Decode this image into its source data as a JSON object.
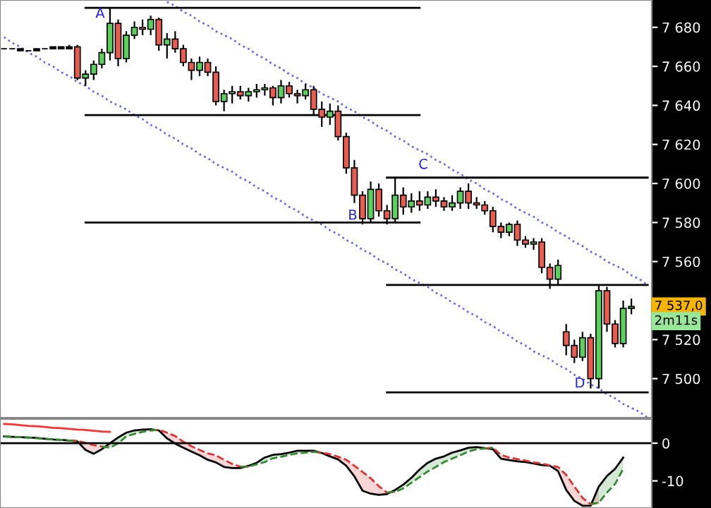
{
  "chart_data": [
    {
      "type": "candlestick",
      "tick_labels": "y",
      "grid": false,
      "legend": false,
      "categories": [
        null,
        null,
        null,
        null,
        null,
        null,
        null,
        null,
        null,
        null,
        null,
        null,
        null,
        null,
        null,
        null,
        null,
        null,
        null,
        null,
        null,
        null,
        null,
        null,
        null,
        null,
        null,
        null,
        null,
        null,
        null,
        null,
        null,
        null,
        null,
        null,
        null,
        null,
        null,
        null,
        null,
        null,
        null,
        null,
        null,
        null,
        null,
        null,
        null,
        null,
        null,
        null,
        null,
        null,
        null,
        null,
        null,
        null,
        null,
        null,
        null,
        null,
        null,
        null,
        null,
        null,
        null,
        null,
        null,
        null,
        null,
        null,
        null,
        null,
        null,
        null,
        null,
        null,
        null,
        null
      ],
      "ohlc": [
        [
          7669,
          7669,
          7669,
          7669
        ],
        [
          7669,
          7669,
          7669,
          7669
        ],
        [
          7669,
          7669,
          7668,
          7668
        ],
        [
          7668,
          7668,
          7668,
          7668
        ],
        [
          7668,
          7669,
          7668,
          7669
        ],
        [
          7669,
          7669,
          7669,
          7669
        ],
        [
          7669,
          7670,
          7669,
          7670
        ],
        [
          7670,
          7670,
          7669,
          7669
        ],
        [
          7669,
          7671,
          7669,
          7670
        ],
        [
          7670,
          7671,
          7653,
          7654
        ],
        [
          7654,
          7658,
          7650,
          7656
        ],
        [
          7656,
          7663,
          7653,
          7661
        ],
        [
          7661,
          7669,
          7659,
          7667
        ],
        [
          7667,
          7690,
          7663,
          7682
        ],
        [
          7682,
          7684,
          7660,
          7664
        ],
        [
          7664,
          7678,
          7662,
          7676
        ],
        [
          7676,
          7683,
          7674,
          7680
        ],
        [
          7680,
          7684,
          7676,
          7679
        ],
        [
          7679,
          7686,
          7676,
          7684
        ],
        [
          7684,
          7685,
          7668,
          7671
        ],
        [
          7671,
          7677,
          7664,
          7674
        ],
        [
          7674,
          7678,
          7667,
          7669
        ],
        [
          7669,
          7671,
          7660,
          7662
        ],
        [
          7662,
          7664,
          7653,
          7658
        ],
        [
          7658,
          7665,
          7655,
          7662
        ],
        [
          7662,
          7664,
          7655,
          7657
        ],
        [
          7657,
          7660,
          7640,
          7642
        ],
        [
          7642,
          7648,
          7637,
          7646
        ],
        [
          7646,
          7650,
          7641,
          7647
        ],
        [
          7647,
          7650,
          7643,
          7645
        ],
        [
          7645,
          7649,
          7642,
          7647
        ],
        [
          7647,
          7651,
          7644,
          7648
        ],
        [
          7648,
          7651,
          7645,
          7649
        ],
        [
          7649,
          7650,
          7640,
          7644
        ],
        [
          7644,
          7653,
          7641,
          7650
        ],
        [
          7650,
          7652,
          7644,
          7646
        ],
        [
          7646,
          7648,
          7641,
          7645
        ],
        [
          7645,
          7651,
          7643,
          7648
        ],
        [
          7648,
          7650,
          7635,
          7638
        ],
        [
          7638,
          7642,
          7629,
          7634
        ],
        [
          7634,
          7641,
          7630,
          7637
        ],
        [
          7637,
          7640,
          7622,
          7624
        ],
        [
          7624,
          7626,
          7605,
          7608
        ],
        [
          7608,
          7612,
          7590,
          7594
        ],
        [
          7594,
          7596,
          7579,
          7582
        ],
        [
          7582,
          7601,
          7580,
          7597
        ],
        [
          7597,
          7600,
          7583,
          7586
        ],
        [
          7586,
          7589,
          7579,
          7582
        ],
        [
          7582,
          7603,
          7580,
          7594
        ],
        [
          7594,
          7598,
          7584,
          7588
        ],
        [
          7588,
          7595,
          7585,
          7591
        ],
        [
          7591,
          7596,
          7586,
          7589
        ],
        [
          7589,
          7596,
          7587,
          7593
        ],
        [
          7593,
          7597,
          7588,
          7591
        ],
        [
          7591,
          7593,
          7586,
          7588
        ],
        [
          7588,
          7594,
          7586,
          7590
        ],
        [
          7590,
          7598,
          7587,
          7596
        ],
        [
          7596,
          7600,
          7587,
          7590
        ],
        [
          7590,
          7593,
          7587,
          7589
        ],
        [
          7589,
          7591,
          7584,
          7586
        ],
        [
          7586,
          7588,
          7575,
          7578
        ],
        [
          7578,
          7580,
          7572,
          7575
        ],
        [
          7575,
          7580,
          7573,
          7579
        ],
        [
          7579,
          7581,
          7568,
          7571
        ],
        [
          7571,
          7573,
          7567,
          7569
        ],
        [
          7569,
          7572,
          7566,
          7570
        ],
        [
          7570,
          7572,
          7554,
          7557
        ],
        [
          7557,
          7559,
          7546,
          7551
        ],
        [
          7551,
          7561,
          7548,
          7558
        ],
        [
          7524,
          7528,
          7512,
          7517
        ],
        [
          7517,
          7520,
          7508,
          7511
        ],
        [
          7511,
          7524,
          7509,
          7521
        ],
        [
          7521,
          7523,
          7495,
          7500
        ],
        [
          7500,
          7548,
          7495,
          7545
        ],
        [
          7545,
          7547,
          7524,
          7528
        ],
        [
          7528,
          7530,
          7516,
          7518
        ],
        [
          7518,
          7540,
          7516,
          7536
        ],
        [
          7536,
          7541,
          7533,
          7537
        ],
        null,
        null
      ],
      "colors": [
        "#000000",
        "#000000",
        "#000000",
        "#000000",
        "#000000",
        "#000000",
        "#000000",
        "#000000",
        "#000000",
        "#e85d50",
        "#5ad15a",
        "#5ad15a",
        "#5ad15a",
        "#5ad15a",
        "#e85d50",
        "#5ad15a",
        "#5ad15a",
        "#e85d50",
        "#5ad15a",
        "#e85d50",
        "#5ad15a",
        "#e85d50",
        "#e85d50",
        "#e85d50",
        "#5ad15a",
        "#e85d50",
        "#e85d50",
        "#5ad15a",
        "#5ad15a",
        "#e85d50",
        "#5ad15a",
        "#5ad15a",
        "#5ad15a",
        "#e85d50",
        "#5ad15a",
        "#e85d50",
        "#e85d50",
        "#5ad15a",
        "#e85d50",
        "#e85d50",
        "#5ad15a",
        "#e85d50",
        "#e85d50",
        "#e85d50",
        "#e85d50",
        "#5ad15a",
        "#e85d50",
        "#e85d50",
        "#5ad15a",
        "#e85d50",
        "#5ad15a",
        "#e85d50",
        "#5ad15a",
        "#e85d50",
        "#e85d50",
        "#5ad15a",
        "#5ad15a",
        "#e85d50",
        "#e85d50",
        "#e85d50",
        "#e85d50",
        "#e85d50",
        "#5ad15a",
        "#e85d50",
        "#e85d50",
        "#5ad15a",
        "#e85d50",
        "#e85d50",
        "#5ad15a",
        "#e85d50",
        "#e85d50",
        "#5ad15a",
        "#e85d50",
        "#5ad15a",
        "#e85d50",
        "#e85d50",
        "#5ad15a",
        "#5ad15a",
        null,
        null
      ],
      "series": [
        {
          "type": "line",
          "color": "#6a6af0",
          "line_style": "dotted",
          "values": [
            null,
            null,
            null,
            null,
            null,
            null,
            null,
            null,
            null,
            null,
            null,
            null,
            null,
            null,
            null,
            null,
            null,
            null,
            null,
            null,
            7693,
            7691,
            7688,
            7686,
            7683,
            7681,
            7678,
            7676,
            7674,
            7671,
            7669,
            7666,
            7664,
            7661,
            7659,
            7656,
            7654,
            7651,
            7649,
            7646,
            7644,
            7642,
            7639,
            7637,
            7634,
            7632,
            7629,
            7627,
            7624,
            7622,
            7619,
            7617,
            7615,
            7612,
            7610,
            7607,
            7605,
            7602,
            7600,
            7597,
            7595,
            7592,
            7590,
            7587,
            7585,
            7583,
            7580,
            7578,
            7575,
            7573,
            7570,
            7568,
            7565,
            7563,
            7560,
            7558,
            7556,
            7553,
            7551,
            7548
          ]
        },
        {
          "type": "line",
          "color": "#6a6af0",
          "line_style": "dotted",
          "values": [
            7675,
            7672,
            7670,
            7667,
            7665,
            7662,
            7660,
            7657,
            7655,
            7652,
            7650,
            7647,
            7645,
            7642,
            7640,
            7638,
            7635,
            7633,
            7630,
            7628,
            7625,
            7623,
            7620,
            7618,
            7615,
            7613,
            7610,
            7608,
            7606,
            7603,
            7601,
            7598,
            7596,
            7593,
            7591,
            7588,
            7586,
            7583,
            7581,
            7579,
            7576,
            7574,
            7571,
            7569,
            7566,
            7564,
            7561,
            7559,
            7556,
            7554,
            7551,
            7549,
            7547,
            7544,
            7542,
            7539,
            7537,
            7534,
            7532,
            7529,
            7527,
            7524,
            7522,
            7519,
            7517,
            7514,
            7512,
            7510,
            7507,
            7505,
            7502,
            7500,
            7497,
            7495,
            7492,
            7490,
            7487,
            7485,
            7483,
            7480
          ]
        },
        {
          "type": "line",
          "color": "#000000",
          "line_style": "solid",
          "values": [
            null,
            null,
            null,
            null,
            null,
            null,
            null,
            null,
            null,
            null,
            7690,
            7690,
            7690,
            7690,
            7690,
            7690,
            7690,
            7690,
            7690,
            7690,
            7690,
            7690,
            7690,
            7690,
            7690,
            7690,
            7690,
            7690,
            7690,
            7690,
            7690,
            7690,
            7690,
            7690,
            7690,
            7690,
            7690,
            7690,
            7690,
            7690,
            7690,
            7690,
            7690,
            7690,
            7690,
            7690,
            7690,
            7690,
            7690,
            7690,
            7690,
            7690,
            null,
            null,
            null,
            null,
            null,
            null,
            null,
            null,
            null,
            null,
            null,
            null,
            null,
            null,
            null,
            null,
            null,
            null,
            null,
            null,
            null,
            null,
            null,
            null,
            null,
            null,
            null,
            null
          ]
        },
        {
          "type": "line",
          "color": "#000000",
          "line_style": "solid",
          "values": [
            null,
            null,
            null,
            null,
            null,
            null,
            null,
            null,
            null,
            null,
            7635,
            7635,
            7635,
            7635,
            7635,
            7635,
            7635,
            7635,
            7635,
            7635,
            7635,
            7635,
            7635,
            7635,
            7635,
            7635,
            7635,
            7635,
            7635,
            7635,
            7635,
            7635,
            7635,
            7635,
            7635,
            7635,
            7635,
            7635,
            7635,
            7635,
            7635,
            7635,
            7635,
            7635,
            7635,
            7635,
            7635,
            7635,
            7635,
            7635,
            7635,
            7635,
            null,
            null,
            null,
            null,
            null,
            null,
            null,
            null,
            null,
            null,
            null,
            null,
            null,
            null,
            null,
            null,
            null,
            null,
            null,
            null,
            null,
            null,
            null,
            null,
            null,
            null,
            null,
            null
          ]
        },
        {
          "type": "line",
          "color": "#000000",
          "line_style": "solid",
          "values": [
            null,
            null,
            null,
            null,
            null,
            null,
            null,
            null,
            null,
            null,
            7580,
            7580,
            7580,
            7580,
            7580,
            7580,
            7580,
            7580,
            7580,
            7580,
            7580,
            7580,
            7580,
            7580,
            7580,
            7580,
            7580,
            7580,
            7580,
            7580,
            7580,
            7580,
            7580,
            7580,
            7580,
            7580,
            7580,
            7580,
            7580,
            7580,
            7580,
            7580,
            7580,
            7580,
            7580,
            7580,
            7580,
            7580,
            7580,
            7580,
            7580,
            7580,
            null,
            null,
            null,
            null,
            null,
            null,
            null,
            null,
            null,
            null,
            null,
            null,
            null,
            null,
            null,
            null,
            null,
            null,
            null,
            null,
            null,
            null,
            null,
            null,
            null,
            null,
            null,
            null
          ]
        },
        {
          "type": "line",
          "color": "#000000",
          "line_style": "solid",
          "values": [
            null,
            null,
            null,
            null,
            null,
            null,
            null,
            null,
            null,
            null,
            null,
            null,
            null,
            null,
            null,
            null,
            null,
            null,
            null,
            null,
            null,
            null,
            null,
            null,
            null,
            null,
            null,
            null,
            null,
            null,
            null,
            null,
            null,
            null,
            null,
            null,
            null,
            null,
            null,
            null,
            null,
            null,
            null,
            null,
            null,
            null,
            null,
            7603,
            7603,
            7603,
            7603,
            7603,
            7603,
            7603,
            7603,
            7603,
            7603,
            7603,
            7603,
            7603,
            7603,
            7603,
            7603,
            7603,
            7603,
            7603,
            7603,
            7603,
            7603,
            7603,
            7603,
            7603,
            7603,
            7603,
            7603,
            7603,
            7603,
            7603,
            7603,
            7603
          ]
        },
        {
          "type": "line",
          "color": "#000000",
          "line_style": "solid",
          "values": [
            null,
            null,
            null,
            null,
            null,
            null,
            null,
            null,
            null,
            null,
            null,
            null,
            null,
            null,
            null,
            null,
            null,
            null,
            null,
            null,
            null,
            null,
            null,
            null,
            null,
            null,
            null,
            null,
            null,
            null,
            null,
            null,
            null,
            null,
            null,
            null,
            null,
            null,
            null,
            null,
            null,
            null,
            null,
            null,
            null,
            null,
            null,
            7548,
            7548,
            7548,
            7548,
            7548,
            7548,
            7548,
            7548,
            7548,
            7548,
            7548,
            7548,
            7548,
            7548,
            7548,
            7548,
            7548,
            7548,
            7548,
            7548,
            7548,
            7548,
            7548,
            7548,
            7548,
            7548,
            7548,
            7548,
            7548,
            7548,
            7548,
            7548,
            7548
          ]
        },
        {
          "type": "line",
          "color": "#000000",
          "line_style": "solid",
          "values": [
            null,
            null,
            null,
            null,
            null,
            null,
            null,
            null,
            null,
            null,
            null,
            null,
            null,
            null,
            null,
            null,
            null,
            null,
            null,
            null,
            null,
            null,
            null,
            null,
            null,
            null,
            null,
            null,
            null,
            null,
            null,
            null,
            null,
            null,
            null,
            null,
            null,
            null,
            null,
            null,
            null,
            null,
            null,
            null,
            null,
            null,
            null,
            7493,
            7493,
            7493,
            7493,
            7493,
            7493,
            7493,
            7493,
            7493,
            7493,
            7493,
            7493,
            7493,
            7493,
            7493,
            7493,
            7493,
            7493,
            7493,
            7493,
            7493,
            7493,
            7493,
            7493,
            7493,
            7493,
            7493,
            7493,
            7493,
            7493,
            7493,
            7493,
            7493
          ]
        }
      ],
      "ylim": [
        7480,
        7694
      ],
      "yticks": [
        {
          "value": 7500,
          "label": "7 500"
        },
        {
          "value": 7520,
          "label": "7 520"
        },
        {
          "value": 7560,
          "label": "7 560"
        },
        {
          "value": 7580,
          "label": "7 580"
        },
        {
          "value": 7600,
          "label": "7 600"
        },
        {
          "value": 7620,
          "label": "7 620"
        },
        {
          "value": 7640,
          "label": "7 640"
        },
        {
          "value": 7660,
          "label": "7 660"
        },
        {
          "value": 7680,
          "label": "7 680"
        }
      ],
      "annotations": [
        "A",
        "B",
        "C",
        "D",
        {
          "text": "7 537,0",
          "y": 7537
        },
        "2m11s"
      ]
    },
    {
      "type": "line",
      "tick_labels": "y",
      "grid": false,
      "legend": false,
      "categories": [
        null,
        null,
        null,
        null,
        null,
        null,
        null,
        null,
        null,
        null,
        null,
        null,
        null,
        null,
        null,
        null,
        null,
        null,
        null,
        null,
        null,
        null,
        null,
        null,
        null,
        null,
        null,
        null,
        null,
        null,
        null,
        null,
        null,
        null,
        null,
        null,
        null,
        null,
        null,
        null,
        null,
        null,
        null,
        null,
        null,
        null,
        null,
        null,
        null,
        null,
        null,
        null,
        null,
        null,
        null,
        null,
        null,
        null,
        null,
        null,
        null,
        null,
        null,
        null,
        null,
        null,
        null,
        null,
        null,
        null,
        null,
        null,
        null,
        null,
        null,
        null,
        null,
        null,
        null,
        null
      ],
      "series": [
        {
          "color": "#000000",
          "line_style": "solid",
          "values": [
            1.8,
            1.7,
            1.6,
            1.5,
            1.4,
            1.2,
            1.0,
            0.9,
            0.7,
            0.5,
            -1.8,
            -2.8,
            -1.6,
            0,
            1.5,
            2.8,
            3.4,
            3.6,
            3.7,
            3.4,
            1.3,
            -0.1,
            -1.2,
            -2.2,
            -3.2,
            -4.4,
            -5.1,
            -6.3,
            -6.6,
            -6.6,
            -6.0,
            -5.2,
            -3.8,
            -3.1,
            -2.9,
            -2.5,
            -2.0,
            -2.0,
            -2.0,
            -2.6,
            -3.5,
            -4.3,
            -6.0,
            -8.8,
            -12.6,
            -13.4,
            -13.7,
            -13.5,
            -12.4,
            -11.0,
            -9.2,
            -7.0,
            -5.2,
            -4.1,
            -3.5,
            -2.5,
            -1.9,
            -1.2,
            -1.0,
            -1.3,
            -1.6,
            -4.1,
            -4.5,
            -4.8,
            -5.0,
            -5.4,
            -5.8,
            -6.0,
            -7.4,
            -12.4,
            -15.3,
            -16.6,
            -16.6,
            -11.5,
            -8.7,
            -6.8,
            -3.8,
            null,
            null,
            null
          ]
        },
        {
          "color": "#e03030",
          "line_style": "dashed",
          "values": [
            null,
            null,
            null,
            null,
            null,
            null,
            null,
            null,
            0.7,
            0.6,
            0.1,
            -0.5,
            -0.9,
            -1.2,
            null,
            null,
            null,
            null,
            3.4,
            3.6,
            2.8,
            1.9,
            0.4,
            -0.8,
            -1.8,
            -2.7,
            -3.2,
            -4.4,
            -5.5,
            -6.2,
            -6.2,
            null,
            null,
            null,
            null,
            null,
            null,
            null,
            -2.3,
            -2.5,
            -2.9,
            -3.6,
            -4.4,
            -6.0,
            -7.6,
            -9.3,
            -11.4,
            -13.1,
            -12.9,
            null,
            null,
            null,
            null,
            null,
            null,
            null,
            null,
            null,
            null,
            -1.4,
            -1.2,
            -3.1,
            -3.8,
            -4.2,
            -4.6,
            -5.1,
            -5.4,
            -5.9,
            -6.3,
            -8.4,
            -11.5,
            -14.5,
            -16.2,
            -15.8,
            null,
            null,
            null,
            null,
            null,
            null
          ],
          "lower": [
            null,
            null,
            null,
            null,
            null,
            null,
            null,
            null,
            0.7,
            0.5,
            -1.8,
            -2.8,
            -1.6,
            0,
            null,
            null,
            null,
            null,
            3.7,
            3.4,
            1.3,
            -0.1,
            -1.2,
            -2.2,
            -3.2,
            -4.4,
            -5.1,
            -6.3,
            -6.6,
            -6.6,
            -6.0,
            null,
            null,
            null,
            null,
            null,
            null,
            null,
            -2.0,
            -2.6,
            -3.5,
            -4.3,
            -6.0,
            -8.8,
            -12.6,
            -13.4,
            -13.7,
            -13.5,
            -12.4,
            null,
            null,
            null,
            null,
            null,
            null,
            null,
            null,
            null,
            null,
            -1.3,
            -1.6,
            -4.1,
            -4.5,
            -4.8,
            -5.0,
            -5.4,
            -5.8,
            -6.0,
            -7.4,
            -12.4,
            -15.3,
            -16.6,
            -16.6,
            -11.5,
            null,
            null,
            null,
            null,
            null,
            null
          ],
          "upper": [
            null,
            null,
            null,
            null,
            null,
            null,
            null,
            null,
            0.7,
            0.6,
            0.1,
            -0.5,
            -0.9,
            -1.2,
            null,
            null,
            null,
            null,
            3.4,
            3.6,
            2.8,
            1.9,
            0.4,
            -0.8,
            -1.8,
            -2.7,
            -3.2,
            -4.4,
            -5.5,
            -6.2,
            -6.2,
            null,
            null,
            null,
            null,
            null,
            null,
            null,
            -2.3,
            -2.5,
            -2.9,
            -3.6,
            -4.4,
            -6.0,
            -7.6,
            -9.3,
            -11.4,
            -13.1,
            -12.9,
            null,
            null,
            null,
            null,
            null,
            null,
            null,
            null,
            null,
            null,
            -1.4,
            -1.2,
            -3.1,
            -3.8,
            -4.2,
            -4.6,
            -5.1,
            -5.4,
            -5.9,
            -6.3,
            -8.4,
            -11.5,
            -14.5,
            -16.2,
            -15.8,
            null,
            null,
            null,
            null,
            null,
            null
          ]
        },
        {
          "color": "#2e8b2e",
          "line_style": "dashed",
          "values": [
            1.8,
            1.7,
            1.6,
            1.5,
            1.3,
            1.2,
            1.0,
            0.9,
            0.7,
            0.6,
            null,
            null,
            -0.9,
            -1.2,
            0,
            1.8,
            2.5,
            3.0,
            3.4,
            3.6,
            null,
            null,
            null,
            null,
            null,
            null,
            null,
            null,
            null,
            -6.2,
            -6.2,
            -5.6,
            -5.0,
            -4.0,
            -3.6,
            -3.1,
            -2.7,
            -2.5,
            -2.3,
            -2.5,
            null,
            null,
            null,
            null,
            null,
            null,
            null,
            -13.1,
            -12.9,
            -12.0,
            -10.5,
            -9.0,
            -7.5,
            -6.3,
            -5.0,
            -4.1,
            -3.2,
            -2.2,
            -1.6,
            -1.4,
            -1.2,
            null,
            null,
            null,
            null,
            null,
            null,
            null,
            null,
            null,
            null,
            null,
            -16.2,
            -15.8,
            -13.1,
            -10.8,
            -6.8,
            null,
            null,
            null
          ],
          "lower": [
            1.8,
            1.7,
            1.6,
            1.5,
            1.3,
            1.2,
            1.0,
            0.9,
            0.7,
            0.6,
            null,
            null,
            -0.9,
            -1.2,
            0,
            1.8,
            2.5,
            3.0,
            3.4,
            3.6,
            null,
            null,
            null,
            null,
            null,
            null,
            null,
            null,
            null,
            -6.2,
            -6.2,
            -5.6,
            -5.0,
            -4.0,
            -3.6,
            -3.1,
            -2.7,
            -2.5,
            -2.3,
            -2.5,
            null,
            null,
            null,
            null,
            null,
            null,
            null,
            -13.1,
            -12.9,
            -12.0,
            -10.5,
            -9.0,
            -7.5,
            -6.3,
            -5.0,
            -4.1,
            -3.2,
            -2.2,
            -1.6,
            -1.4,
            -1.2,
            null,
            null,
            null,
            null,
            null,
            null,
            null,
            null,
            null,
            null,
            null,
            -16.2,
            -15.8,
            -13.1,
            -10.8,
            -6.8,
            null,
            null,
            null
          ],
          "upper": [
            1.8,
            1.7,
            1.6,
            1.5,
            1.4,
            1.2,
            1.0,
            0.9,
            0.7,
            0.5,
            null,
            null,
            -1.6,
            0,
            1.5,
            2.8,
            3.4,
            3.6,
            3.7,
            3.4,
            null,
            null,
            null,
            null,
            null,
            null,
            null,
            null,
            null,
            -6.6,
            -6.0,
            -5.2,
            -3.8,
            -3.1,
            -2.9,
            -2.5,
            -2.0,
            -2.0,
            -2.0,
            -2.6,
            null,
            null,
            null,
            null,
            null,
            null,
            null,
            -13.5,
            -12.4,
            -11.0,
            -9.2,
            -7.0,
            -5.2,
            -4.1,
            -3.5,
            -2.5,
            -1.9,
            -1.2,
            -1.0,
            -1.3,
            -1.6,
            null,
            null,
            null,
            null,
            null,
            null,
            null,
            null,
            null,
            null,
            null,
            -16.6,
            -11.5,
            -8.7,
            -6.8,
            -3.8,
            null,
            null,
            null
          ]
        },
        {
          "color": "#ff3030",
          "line_style": "solid",
          "values": [
            5.1,
            5.0,
            4.8,
            4.6,
            4.5,
            4.3,
            4.1,
            4.0,
            3.8,
            3.6,
            3.5,
            3.3,
            3.1,
            3.0,
            null,
            null,
            null,
            null,
            null,
            null,
            null,
            null,
            null,
            null,
            null,
            null,
            null,
            null,
            null,
            null,
            null,
            null,
            null,
            null,
            null,
            null,
            null,
            null,
            null,
            null,
            null,
            null,
            null,
            null,
            null,
            null,
            null,
            null,
            null,
            null,
            null,
            null,
            null,
            null,
            null,
            null,
            null,
            null,
            null,
            null,
            null,
            null,
            null,
            null,
            null,
            null,
            null,
            null,
            null,
            null,
            null,
            null,
            null,
            null,
            null,
            null,
            null,
            null,
            null,
            null
          ]
        }
      ],
      "ref_lines": [
        {
          "axis": "y",
          "value": 0,
          "color": "#000000"
        }
      ],
      "ylim": [
        -17.2,
        6.4
      ],
      "yticks": [
        {
          "value": 0,
          "label": "0"
        },
        {
          "value": -10,
          "label": "-10"
        }
      ]
    }
  ]
}
